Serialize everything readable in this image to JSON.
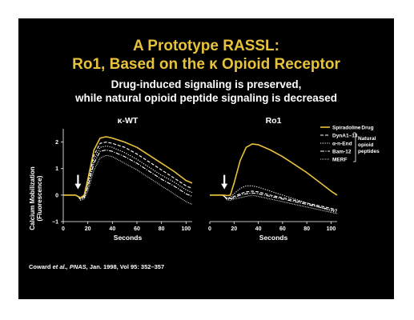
{
  "slide": {
    "title_line1": "A Prototype RASSL:",
    "title_line2_pre": "Ro1, Based on the ",
    "title_kappa": "κ",
    "title_line2_post": " Opioid Receptor",
    "subtitle_line1": "Drug-induced signaling is preserved,",
    "subtitle_line2": "while natural opioid peptide signaling is decreased",
    "citation_author": "Coward ",
    "citation_etal": "et al., PNAS,",
    "citation_rest": " Jan. 1998, Vol 95: 352–357"
  },
  "colors": {
    "background": "#000000",
    "title": "#e8c23a",
    "text": "#ffffff",
    "drug_line": "#e8c23a",
    "peptide_line": "#ffffff"
  },
  "legend": {
    "drug_bracket_label": "– Drug",
    "peptide_bracket_label_1": "Natural",
    "peptide_bracket_label_2": "opioid",
    "peptide_bracket_label_3": "peptides"
  },
  "chart_data": [
    {
      "type": "line",
      "title": "κ-WT",
      "xlabel": "Seconds",
      "ylabel": "Calcium Mobilization (Fluorescence)",
      "xlim": [
        0,
        105
      ],
      "ylim": [
        -1,
        2.5
      ],
      "xticks": [
        0,
        20,
        40,
        60,
        80,
        100
      ],
      "yticks": [
        -1,
        0,
        1,
        2
      ],
      "annotation": "arrow at x=12 (drug addition)",
      "series": [
        {
          "name": "Spiradoline",
          "style": "solid",
          "x": [
            0,
            5,
            10,
            12,
            14,
            17,
            20,
            25,
            30,
            35,
            40,
            50,
            60,
            70,
            80,
            90,
            100,
            105
          ],
          "y": [
            0,
            0,
            0,
            -0.05,
            -0.1,
            0.0,
            0.6,
            1.7,
            2.15,
            2.2,
            2.15,
            2.0,
            1.8,
            1.5,
            1.2,
            0.9,
            0.55,
            0.45
          ]
        },
        {
          "name": "DynA1–13",
          "style": "dashed",
          "x": [
            0,
            5,
            10,
            12,
            14,
            17,
            20,
            25,
            30,
            35,
            40,
            50,
            60,
            70,
            80,
            90,
            100,
            105
          ],
          "y": [
            0,
            0,
            0,
            -0.05,
            -0.12,
            -0.05,
            0.5,
            1.5,
            1.95,
            2.0,
            1.95,
            1.8,
            1.55,
            1.25,
            0.95,
            0.65,
            0.35,
            0.25
          ]
        },
        {
          "name": "α-n-End",
          "style": "dotted",
          "x": [
            0,
            5,
            10,
            12,
            14,
            17,
            20,
            25,
            30,
            35,
            40,
            50,
            60,
            70,
            80,
            90,
            100,
            105
          ],
          "y": [
            0,
            0,
            0,
            -0.05,
            -0.15,
            -0.1,
            0.4,
            1.35,
            1.8,
            1.85,
            1.8,
            1.6,
            1.35,
            1.05,
            0.75,
            0.5,
            0.2,
            0.1
          ]
        },
        {
          "name": "Bam-12",
          "style": "dashdot",
          "x": [
            0,
            5,
            10,
            12,
            14,
            17,
            20,
            25,
            30,
            35,
            40,
            50,
            60,
            70,
            80,
            90,
            100,
            105
          ],
          "y": [
            0,
            0,
            0,
            -0.05,
            -0.15,
            -0.1,
            0.3,
            1.2,
            1.65,
            1.7,
            1.65,
            1.45,
            1.2,
            0.9,
            0.6,
            0.35,
            0.05,
            -0.05
          ]
        },
        {
          "name": "MERF",
          "style": "finedot",
          "x": [
            0,
            5,
            10,
            12,
            14,
            17,
            20,
            25,
            30,
            35,
            40,
            50,
            60,
            70,
            80,
            90,
            100,
            105
          ],
          "y": [
            0,
            0,
            0,
            -0.05,
            -0.2,
            -0.15,
            0.15,
            0.95,
            1.4,
            1.5,
            1.45,
            1.2,
            0.95,
            0.65,
            0.35,
            0.05,
            -0.25,
            -0.35
          ]
        }
      ]
    },
    {
      "type": "line",
      "title": "Ro1",
      "xlabel": "Seconds",
      "ylabel": "",
      "xlim": [
        0,
        105
      ],
      "ylim": [
        -1,
        2.5
      ],
      "xticks": [
        0,
        20,
        40,
        60,
        80,
        100
      ],
      "yticks": [],
      "annotation": "arrow at x=12 (drug addition)",
      "series": [
        {
          "name": "Spiradoline",
          "style": "solid",
          "x": [
            0,
            5,
            10,
            12,
            14,
            17,
            20,
            25,
            30,
            35,
            40,
            50,
            60,
            70,
            80,
            90,
            100,
            105
          ],
          "y": [
            0,
            0,
            0,
            0,
            -0.02,
            0.0,
            0.45,
            1.3,
            1.8,
            1.93,
            1.9,
            1.7,
            1.45,
            1.15,
            0.85,
            0.5,
            0.15,
            0.0
          ]
        },
        {
          "name": "DynA1–13",
          "style": "dashed",
          "x": [
            0,
            5,
            10,
            12,
            14,
            17,
            20,
            25,
            30,
            35,
            40,
            50,
            60,
            70,
            80,
            90,
            100,
            105
          ],
          "y": [
            0,
            0,
            0,
            -0.05,
            -0.12,
            -0.12,
            -0.05,
            0.05,
            0.12,
            0.15,
            0.12,
            0.0,
            -0.1,
            -0.2,
            -0.3,
            -0.4,
            -0.5,
            -0.55
          ]
        },
        {
          "name": "α-n-End",
          "style": "dotted",
          "x": [
            0,
            5,
            10,
            12,
            14,
            17,
            20,
            25,
            30,
            35,
            40,
            50,
            60,
            70,
            80,
            90,
            100,
            105
          ],
          "y": [
            0,
            0,
            0,
            -0.05,
            -0.12,
            -0.08,
            0.05,
            0.25,
            0.35,
            0.35,
            0.3,
            0.15,
            0.0,
            -0.15,
            -0.3,
            -0.45,
            -0.6,
            -0.65
          ]
        },
        {
          "name": "Bam-12",
          "style": "dashdot",
          "x": [
            0,
            5,
            10,
            12,
            14,
            17,
            20,
            25,
            30,
            35,
            40,
            50,
            60,
            70,
            80,
            90,
            100,
            105
          ],
          "y": [
            0,
            0,
            0,
            -0.05,
            -0.15,
            -0.15,
            -0.1,
            0.0,
            0.05,
            0.08,
            0.05,
            -0.05,
            -0.15,
            -0.25,
            -0.35,
            -0.45,
            -0.55,
            -0.6
          ]
        },
        {
          "name": "MERF",
          "style": "finedot",
          "x": [
            0,
            5,
            10,
            12,
            14,
            17,
            20,
            25,
            30,
            35,
            40,
            50,
            60,
            70,
            80,
            90,
            100,
            105
          ],
          "y": [
            0,
            0,
            0,
            -0.05,
            -0.18,
            -0.2,
            -0.15,
            -0.1,
            -0.05,
            0.0,
            -0.05,
            -0.15,
            -0.25,
            -0.35,
            -0.45,
            -0.55,
            -0.65,
            -0.7
          ]
        }
      ]
    }
  ]
}
